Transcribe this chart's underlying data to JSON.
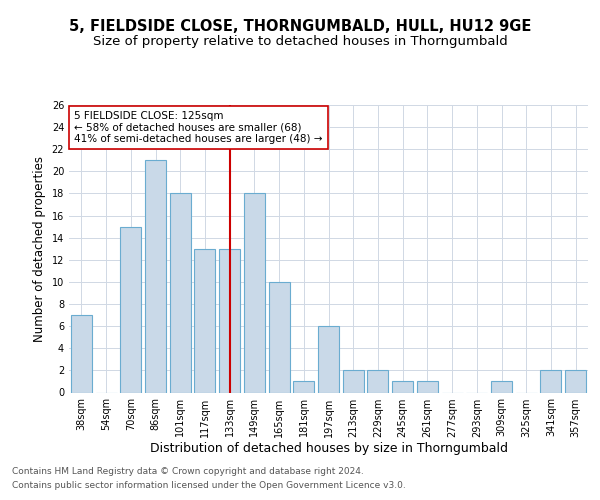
{
  "title1": "5, FIELDSIDE CLOSE, THORNGUMBALD, HULL, HU12 9GE",
  "title2": "Size of property relative to detached houses in Thorngumbald",
  "xlabel": "Distribution of detached houses by size in Thorngumbald",
  "ylabel": "Number of detached properties",
  "categories": [
    "38sqm",
    "54sqm",
    "70sqm",
    "86sqm",
    "101sqm",
    "117sqm",
    "133sqm",
    "149sqm",
    "165sqm",
    "181sqm",
    "197sqm",
    "213sqm",
    "229sqm",
    "245sqm",
    "261sqm",
    "277sqm",
    "293sqm",
    "309sqm",
    "325sqm",
    "341sqm",
    "357sqm"
  ],
  "values": [
    7,
    0,
    15,
    21,
    18,
    13,
    13,
    18,
    10,
    1,
    6,
    2,
    2,
    1,
    1,
    0,
    0,
    1,
    0,
    2,
    2
  ],
  "bar_color": "#c9d9e8",
  "bar_edgecolor": "#6aacd0",
  "vline_x_index": 6,
  "vline_color": "#cc0000",
  "annotation_line1": "5 FIELDSIDE CLOSE: 125sqm",
  "annotation_line2": "← 58% of detached houses are smaller (68)",
  "annotation_line3": "41% of semi-detached houses are larger (48) →",
  "annotation_box_color": "#ffffff",
  "annotation_box_edgecolor": "#cc0000",
  "ylim": [
    0,
    26
  ],
  "yticks": [
    0,
    2,
    4,
    6,
    8,
    10,
    12,
    14,
    16,
    18,
    20,
    22,
    24,
    26
  ],
  "footer1": "Contains HM Land Registry data © Crown copyright and database right 2024.",
  "footer2": "Contains public sector information licensed under the Open Government Licence v3.0.",
  "background_color": "#ffffff",
  "grid_color": "#d0d8e4",
  "title1_fontsize": 10.5,
  "title2_fontsize": 9.5,
  "xlabel_fontsize": 9,
  "ylabel_fontsize": 8.5,
  "tick_fontsize": 7,
  "annotation_fontsize": 7.5,
  "footer_fontsize": 6.5
}
